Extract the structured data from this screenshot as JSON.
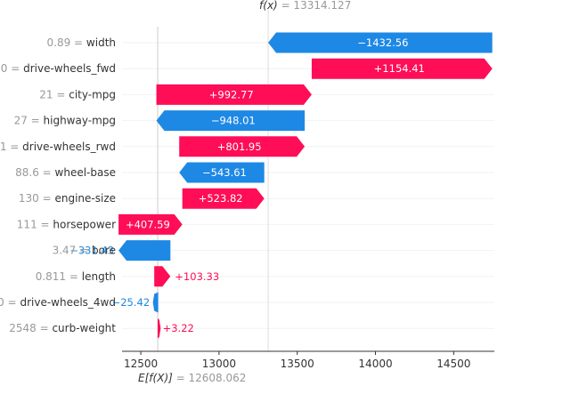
{
  "chart_data": {
    "type": "waterfall",
    "base_value": 12608.062,
    "output_value": 13314.127,
    "fx_label": "f(x)",
    "fx_value": "13314.127",
    "efx_label": "E[f(X)]",
    "efx_value": "12608.062",
    "xlim": [
      12380,
      14760
    ],
    "xticks": [
      12500,
      13000,
      13500,
      14000,
      14500
    ],
    "colors": {
      "positive": "#ff0d57",
      "negative": "#1e88e5"
    },
    "features": [
      {
        "value": "0.89",
        "name": "width",
        "shap": -1432.56,
        "label": "−1432.56"
      },
      {
        "value": "0",
        "name": "drive-wheels_fwd",
        "shap": 1154.41,
        "label": "+1154.41"
      },
      {
        "value": "21",
        "name": "city-mpg",
        "shap": 992.77,
        "label": "+992.77"
      },
      {
        "value": "27",
        "name": "highway-mpg",
        "shap": -948.01,
        "label": "−948.01"
      },
      {
        "value": "1",
        "name": "drive-wheels_rwd",
        "shap": 801.95,
        "label": "+801.95"
      },
      {
        "value": "88.6",
        "name": "wheel-base",
        "shap": -543.61,
        "label": "−543.61"
      },
      {
        "value": "130",
        "name": "engine-size",
        "shap": 523.82,
        "label": "+523.82"
      },
      {
        "value": "111",
        "name": "horsepower",
        "shap": 407.59,
        "label": "+407.59"
      },
      {
        "value": "3.47",
        "name": "bore",
        "shap": -331.43,
        "label": "−331.43"
      },
      {
        "value": "0.811",
        "name": "length",
        "shap": 103.33,
        "label": "+103.33"
      },
      {
        "value": "0",
        "name": "drive-wheels_4wd",
        "shap": -25.42,
        "label": "−25.42"
      },
      {
        "value": "2548",
        "name": "curb-weight",
        "shap": 3.22,
        "label": "+3.22"
      }
    ]
  }
}
